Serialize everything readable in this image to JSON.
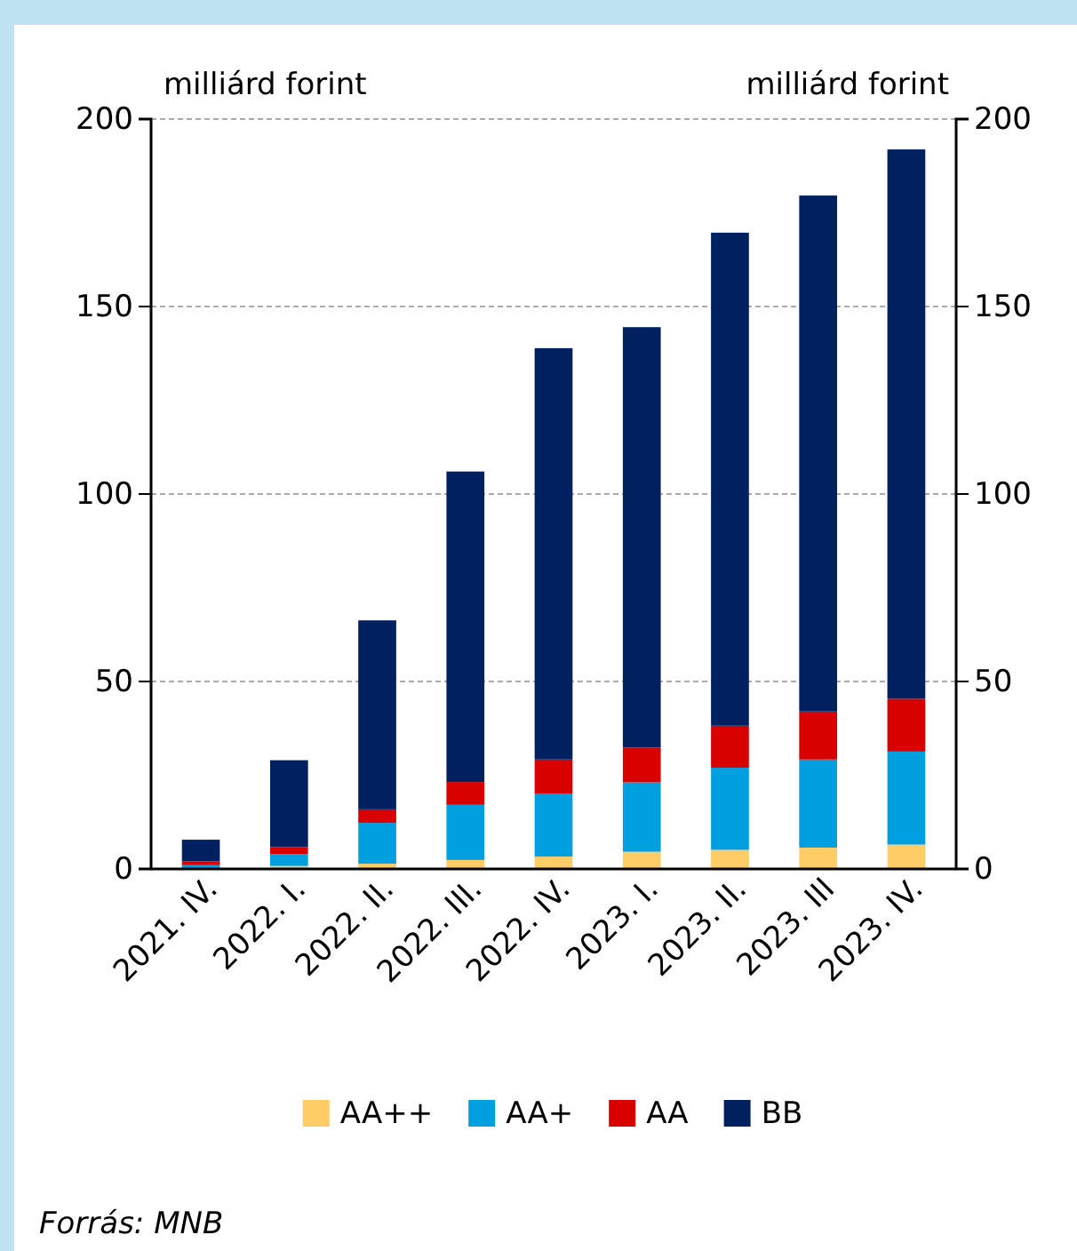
{
  "chart_data": {
    "type": "bar",
    "stacked": true,
    "ylabel": "milliárd forint",
    "y2label": "milliárd forint",
    "categories": [
      "2021. IV.",
      "2022. I.",
      "2022. II.",
      "2022. III.",
      "2022. IV.",
      "2023. I.",
      "2023. II.",
      "2023. III",
      "2023. IV."
    ],
    "series": [
      {
        "name": "AA++",
        "color": "#ffcc66",
        "values": [
          null,
          0.8,
          1.4,
          2.4,
          3.3,
          4.6,
          5.1,
          5.7,
          6.5
        ]
      },
      {
        "name": "AA+",
        "color": "#009fe0",
        "values": [
          1,
          3.1,
          10.9,
          14.7,
          16.7,
          18.5,
          21.9,
          23.5,
          24.8
        ]
      },
      {
        "name": "AA",
        "color": "#d90000",
        "values": [
          1,
          1.9,
          3.6,
          6.1,
          9.2,
          9.3,
          11.2,
          12.8,
          14.1
        ]
      },
      {
        "name": "BB",
        "color": "#002060",
        "values": [
          5.8,
          23.2,
          50.4,
          82.8,
          109.7,
          112.1,
          131.5,
          137.6,
          146.5
        ]
      }
    ],
    "ylim": [
      0,
      200
    ],
    "yticks": [
      0,
      50,
      100,
      150,
      200
    ],
    "y2lim": [
      0,
      200
    ],
    "y2ticks": [
      0,
      50,
      100,
      150,
      200
    ],
    "grid": "y",
    "legend": "bottom",
    "annotations": [
      "Forrás: MNB"
    ]
  }
}
